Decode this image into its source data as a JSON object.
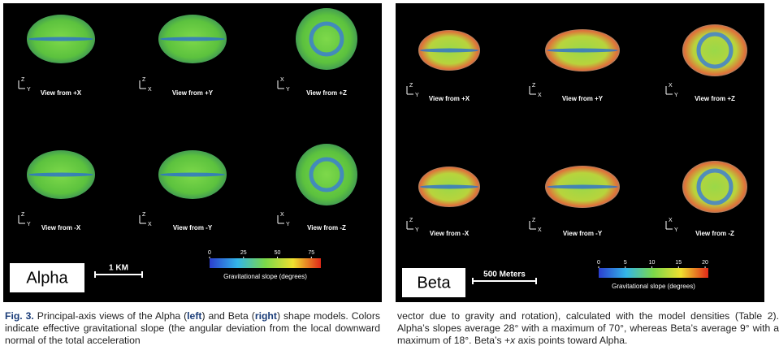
{
  "panels": [
    {
      "name": "Alpha",
      "scale_bar": "1 KM",
      "views": [
        "View from +X",
        "View from +Y",
        "View from +Z",
        "View from -X",
        "View from -Y",
        "View from -Z"
      ],
      "axes": [
        [
          "Z",
          "Y"
        ],
        [
          "Z",
          "X"
        ],
        [
          "X",
          "Y"
        ],
        [
          "Z",
          "Y"
        ],
        [
          "Z",
          "X"
        ],
        [
          "X",
          "Y"
        ]
      ],
      "colorbar": {
        "label": "Gravitational slope (degrees)",
        "ticks": [
          0,
          25,
          50,
          75
        ],
        "lim": [
          0,
          82
        ]
      }
    },
    {
      "name": "Beta",
      "scale_bar": "500 Meters",
      "views": [
        "View from +X",
        "View from +Y",
        "View from +Z",
        "View from -X",
        "View from -Y",
        "View from -Z"
      ],
      "axes": [
        [
          "Z",
          "Y"
        ],
        [
          "Z",
          "X"
        ],
        [
          "X",
          "Y"
        ],
        [
          "Z",
          "Y"
        ],
        [
          "Z",
          "X"
        ],
        [
          "X",
          "Y"
        ]
      ],
      "colorbar": {
        "label": "Gravitational slope (degrees)",
        "ticks": [
          0,
          5,
          10,
          15,
          20
        ],
        "lim": [
          0,
          20.6
        ]
      }
    }
  ],
  "caption": {
    "left": [
      "Fig. 3.",
      " Principal-axis views of the Alpha (",
      "left",
      ") and Beta (",
      "right",
      ") shape models. Colors indicate effective gravitational slope (the angular deviation from the local downward normal of the total acceleration"
    ],
    "right": [
      "vector due to gravity and rotation), calculated with the model densities (Table 2). Alpha’s slopes average 28° with a maximum of 70°, whereas Beta’s average 9° with a maximum of 18°. Beta’s +",
      "x",
      " axis points toward Alpha."
    ]
  }
}
